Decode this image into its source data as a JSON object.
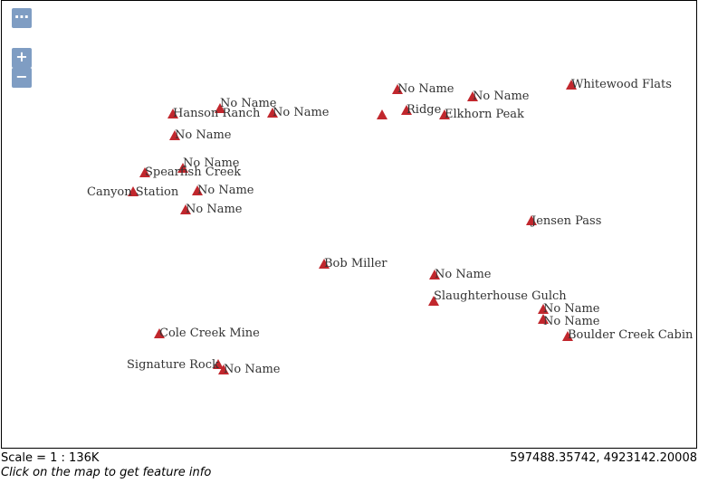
{
  "controls": {
    "layers_label": "⋯",
    "zoom_in_label": "+",
    "zoom_out_label": "−"
  },
  "features": [
    {
      "label": "No Name"
    },
    {
      "label": "Hanson Ranch"
    },
    {
      "label": "No Name"
    },
    {
      "label": "No Name"
    },
    {
      "label": "No Name"
    },
    {
      "label": "Spearfish Creek"
    },
    {
      "label": "Canyon Station"
    },
    {
      "label": "No Name"
    },
    {
      "label": "No Name"
    },
    {
      "label": "No Name"
    },
    {
      "label": ""
    },
    {
      "label": "Ridge"
    },
    {
      "label": "Elkhorn Peak"
    },
    {
      "label": "No Name"
    },
    {
      "label": "Whitewood Flats"
    },
    {
      "label": "Jensen Pass"
    },
    {
      "label": "Bob Miller"
    },
    {
      "label": "No Name"
    },
    {
      "label": "Slaughterhouse Gulch"
    },
    {
      "label": "No Name"
    },
    {
      "label": "No Name"
    },
    {
      "label": "Boulder Creek Cabin"
    },
    {
      "label": "Cole Creek Mine"
    },
    {
      "label": "Signature Rock"
    },
    {
      "label": "No Name"
    }
  ],
  "status": {
    "scale": "Scale = 1 : 136K",
    "coordinates": "597488.35742, 4923142.20008",
    "hint": "Click on the map to get feature info"
  },
  "colors": {
    "marker": "#c1272d",
    "control": "#7f9dc3"
  }
}
